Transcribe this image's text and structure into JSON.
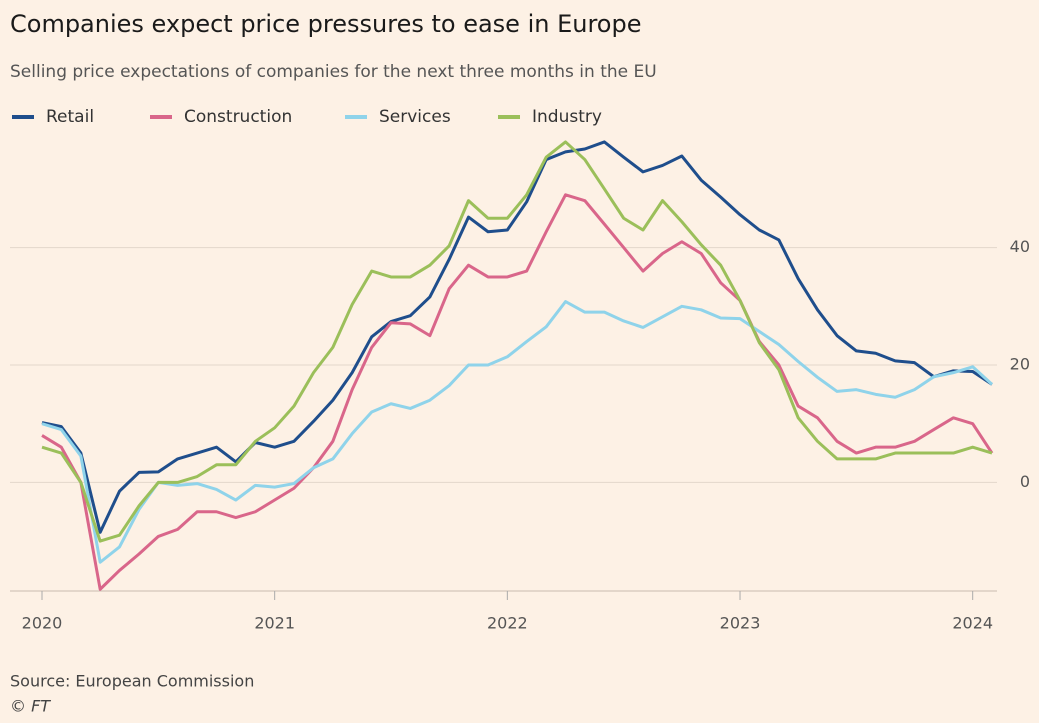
{
  "chart_data": {
    "type": "line",
    "title": "Companies expect price pressures to ease in Europe",
    "subtitle": "Selling price expectations of companies for the next three months in the EU",
    "source": "Source: European Commission",
    "credit": "© FT",
    "x": [
      2020,
      2020.083,
      2020.167,
      2020.25,
      2020.333,
      2020.417,
      2020.5,
      2020.583,
      2020.667,
      2020.75,
      2020.833,
      2020.917,
      2021,
      2021.083,
      2021.167,
      2021.25,
      2021.333,
      2021.417,
      2021.5,
      2021.583,
      2021.667,
      2021.75,
      2021.833,
      2021.917,
      2022,
      2022.083,
      2022.167,
      2022.25,
      2022.333,
      2022.417,
      2022.5,
      2022.583,
      2022.667,
      2022.75,
      2022.833,
      2022.917,
      2023,
      2023.083,
      2023.167,
      2023.25,
      2023.333,
      2023.417,
      2023.5,
      2023.583,
      2023.667,
      2023.75,
      2023.833,
      2023.917,
      2024,
      2024.083
    ],
    "series": [
      {
        "name": "Retail",
        "color": "#1f4e8c",
        "values": [
          10.2,
          9.5,
          5,
          -8.5,
          -1.5,
          1.7,
          1.8,
          4,
          5,
          6,
          3.5,
          6.8,
          6,
          7,
          10.4,
          14,
          18.7,
          24.8,
          27.4,
          28.4,
          31.6,
          38,
          45.2,
          42.7,
          43,
          47.8,
          55,
          56.3,
          56.8,
          58,
          55.4,
          52.9,
          54,
          55.6,
          51.5,
          48.6,
          45.6,
          43,
          41.3,
          34.7,
          29.4,
          25,
          22.4,
          22,
          20.7,
          20.4,
          18,
          19,
          18.9,
          16.7
        ]
      },
      {
        "name": "Construction",
        "color": "#d9668a",
        "values": [
          8,
          6,
          0,
          -18.2,
          -15,
          -12.2,
          -9.2,
          -8,
          -5,
          -5,
          -6,
          -5,
          -3,
          -1,
          2.5,
          7,
          15.8,
          23,
          27.2,
          27,
          25,
          33,
          37,
          35,
          35,
          36,
          42.7,
          49,
          48,
          44,
          40,
          36,
          39,
          41,
          39,
          34,
          31,
          24,
          20,
          13,
          11,
          7,
          5,
          6,
          6,
          7,
          9,
          11,
          10,
          5
        ]
      },
      {
        "name": "Services",
        "color": "#8fd3ea",
        "values": [
          10,
          9,
          4.5,
          -13.6,
          -11,
          -4.6,
          0,
          -0.5,
          -0.2,
          -1.2,
          -3,
          -0.5,
          -0.8,
          -0.2,
          2.5,
          4,
          8.3,
          12,
          13.4,
          12.6,
          14,
          16.5,
          20,
          20,
          21.4,
          24,
          26.5,
          30.8,
          29,
          29,
          27.5,
          26.4,
          28.2,
          30,
          29.4,
          28,
          27.9,
          25.7,
          23.5,
          20.6,
          17.9,
          15.5,
          15.8,
          15,
          14.5,
          15.8,
          18,
          18.7,
          19.7,
          16.7
        ]
      },
      {
        "name": "Industry",
        "color": "#9bbf5a",
        "values": [
          6,
          5,
          0,
          -10,
          -9,
          -4,
          0,
          0,
          1,
          3,
          3,
          7,
          9.3,
          13,
          18.7,
          23,
          30.3,
          36,
          35,
          35,
          37,
          40.3,
          48,
          45,
          45,
          49,
          55.4,
          58,
          55,
          50,
          45,
          43,
          48,
          44.4,
          40.5,
          37,
          31,
          23.8,
          19.2,
          11,
          7,
          4,
          4,
          4,
          5,
          5,
          5,
          5,
          6,
          5
        ]
      }
    ],
    "xlim": [
      2020,
      2024.083
    ],
    "xticks": [
      2020,
      2021,
      2022,
      2023,
      2024
    ],
    "ylim": [
      -18.5,
      58.5
    ],
    "yticks": [
      0,
      20,
      40
    ],
    "grid": true,
    "legend": "top-left"
  }
}
